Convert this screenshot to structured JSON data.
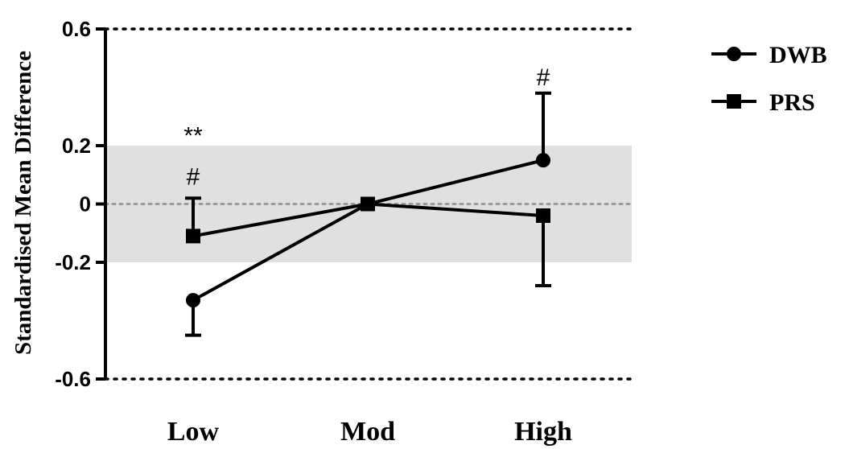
{
  "chart_data": {
    "type": "line",
    "ylabel": "Standardised Mean Difference",
    "categories": [
      "Low",
      "Mod",
      "High"
    ],
    "ylim": [
      -0.6,
      0.6
    ],
    "yticks": [
      {
        "value": 0.6,
        "label": "0.6"
      },
      {
        "value": 0.2,
        "label": "0.2"
      },
      {
        "value": 0,
        "label": "0"
      },
      {
        "value": -0.2,
        "label": "-0.2"
      },
      {
        "value": -0.6,
        "label": "-0.6"
      }
    ],
    "reference_lines": [
      -0.6,
      0,
      0.6
    ],
    "shaded_band": [
      -0.2,
      0.2
    ],
    "series": [
      {
        "name": "DWB",
        "marker": "circle",
        "values": [
          -0.33,
          0.0,
          0.15
        ],
        "error_bars": [
          {
            "category": "Low",
            "direction": "down",
            "end": -0.45
          },
          {
            "category": "High",
            "direction": "up",
            "end": 0.38
          }
        ]
      },
      {
        "name": "PRS",
        "marker": "square",
        "values": [
          -0.11,
          0.0,
          -0.04
        ],
        "error_bars": [
          {
            "category": "Low",
            "direction": "up",
            "end": 0.02
          },
          {
            "category": "High",
            "direction": "down",
            "end": -0.28
          }
        ]
      }
    ],
    "annotations": [
      {
        "category": "Low",
        "text": "**",
        "y": 0.24
      },
      {
        "category": "Low",
        "text": "#",
        "y": 0.1
      },
      {
        "category": "High",
        "text": "#",
        "y": 0.44
      }
    ],
    "legend": {
      "position": "right",
      "entries": [
        "DWB",
        "PRS"
      ]
    },
    "colors": {
      "line": "#000000",
      "band": "#e0e0e0",
      "zero_line": "#999999"
    }
  }
}
